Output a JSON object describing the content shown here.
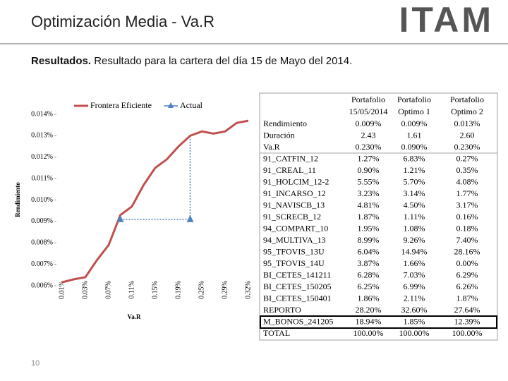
{
  "header": {
    "title": "Optimización Media - Va.R",
    "logo": "ITAM"
  },
  "subtitle": {
    "bold": "Resultados.",
    "text": "Resultado para la cartera del día 15 de Mayo del 2014."
  },
  "page_number": "10",
  "chart_data": {
    "type": "line",
    "x_label": "Va.R",
    "y_label": "Rendimiento",
    "categories": [
      "0.01%",
      null,
      "0.03%",
      null,
      "0.07%",
      null,
      "0.11%",
      null,
      "0.15%",
      null,
      "0.19%",
      null,
      "0.25%",
      null,
      "0.29%",
      null,
      "0.32%"
    ],
    "series": [
      {
        "name": "Frontera Eficiente",
        "color": "#c0504d",
        "values": [
          0.00616,
          0.0063,
          0.0064,
          0.0072,
          0.0079,
          0.0093,
          0.0097,
          0.0107,
          0.0115,
          0.0119,
          0.0125,
          0.013,
          0.0132,
          0.0131,
          0.0132,
          0.0136,
          0.0137
        ]
      },
      {
        "name": "Actual",
        "color": "#4f81bd",
        "values": [
          null,
          null,
          null,
          null,
          null,
          0.0091,
          null,
          null,
          null,
          null,
          null,
          0.0091,
          null,
          null,
          null,
          null,
          null
        ]
      }
    ],
    "ylim": [
      0.006,
      0.014
    ],
    "yticks": [
      {
        "value": 0.006,
        "label": "0.006%"
      },
      {
        "value": 0.007,
        "label": "0.007%"
      },
      {
        "value": 0.008,
        "label": "0.008%"
      },
      {
        "value": 0.009,
        "label": "0.009%"
      },
      {
        "value": 0.01,
        "label": "0.010%"
      },
      {
        "value": 0.011,
        "label": "0.011%"
      },
      {
        "value": 0.012,
        "label": "0.012%"
      },
      {
        "value": 0.013,
        "label": "0.013%"
      },
      {
        "value": 0.014,
        "label": "0.014%"
      }
    ],
    "grid": false,
    "legend": "top"
  },
  "table": {
    "header": [
      [
        "Portafolio",
        "15/05/2014"
      ],
      [
        "Portafolio",
        "Optimo 1"
      ],
      [
        "Portafolio",
        "Optimo 2"
      ]
    ],
    "rows": [
      [
        "Rendimiento",
        "0.009%",
        "0.009%",
        "0.013%"
      ],
      [
        "Duración",
        "2.43",
        "1.61",
        "2.60"
      ],
      [
        "Va.R",
        "0.230%",
        "0.090%",
        "0.230%"
      ],
      [
        "91_CATFIN_12",
        "1.27%",
        "6.83%",
        "0.27%"
      ],
      [
        "91_CREAL_11",
        "0.90%",
        "1.21%",
        "0.35%"
      ],
      [
        "91_HOLCIM_12-2",
        "5.55%",
        "5.70%",
        "4.08%"
      ],
      [
        "91_INCARSO_12",
        "3.23%",
        "3.14%",
        "1.77%"
      ],
      [
        "91_NAVISCB_13",
        "4.81%",
        "4.50%",
        "3.17%"
      ],
      [
        "91_SCRECB_12",
        "1.87%",
        "1.11%",
        "0.16%"
      ],
      [
        "94_COMPART_10",
        "1.95%",
        "1.08%",
        "0.18%"
      ],
      [
        "94_MULTIVA_13",
        "8.99%",
        "9.26%",
        "7.40%"
      ],
      [
        "95_TFOVIS_13U",
        "6.04%",
        "14.94%",
        "28.16%"
      ],
      [
        "95_TFOVIS_14U",
        "3.87%",
        "1.66%",
        "0.00%"
      ],
      [
        "BI_CETES_141211",
        "6.28%",
        "7.03%",
        "6.29%"
      ],
      [
        "BI_CETES_150205",
        "6.25%",
        "6.99%",
        "6.26%"
      ],
      [
        "BI_CETES_150401",
        "1.86%",
        "2.11%",
        "1.87%"
      ],
      [
        "REPORTO",
        "28.20%",
        "32.60%",
        "27.64%"
      ],
      [
        "M_BONOS_241205",
        "18.94%",
        "1.85%",
        "12.39%"
      ],
      [
        "TOTAL",
        "100.00%",
        "100.00%",
        "100.00%"
      ]
    ]
  }
}
